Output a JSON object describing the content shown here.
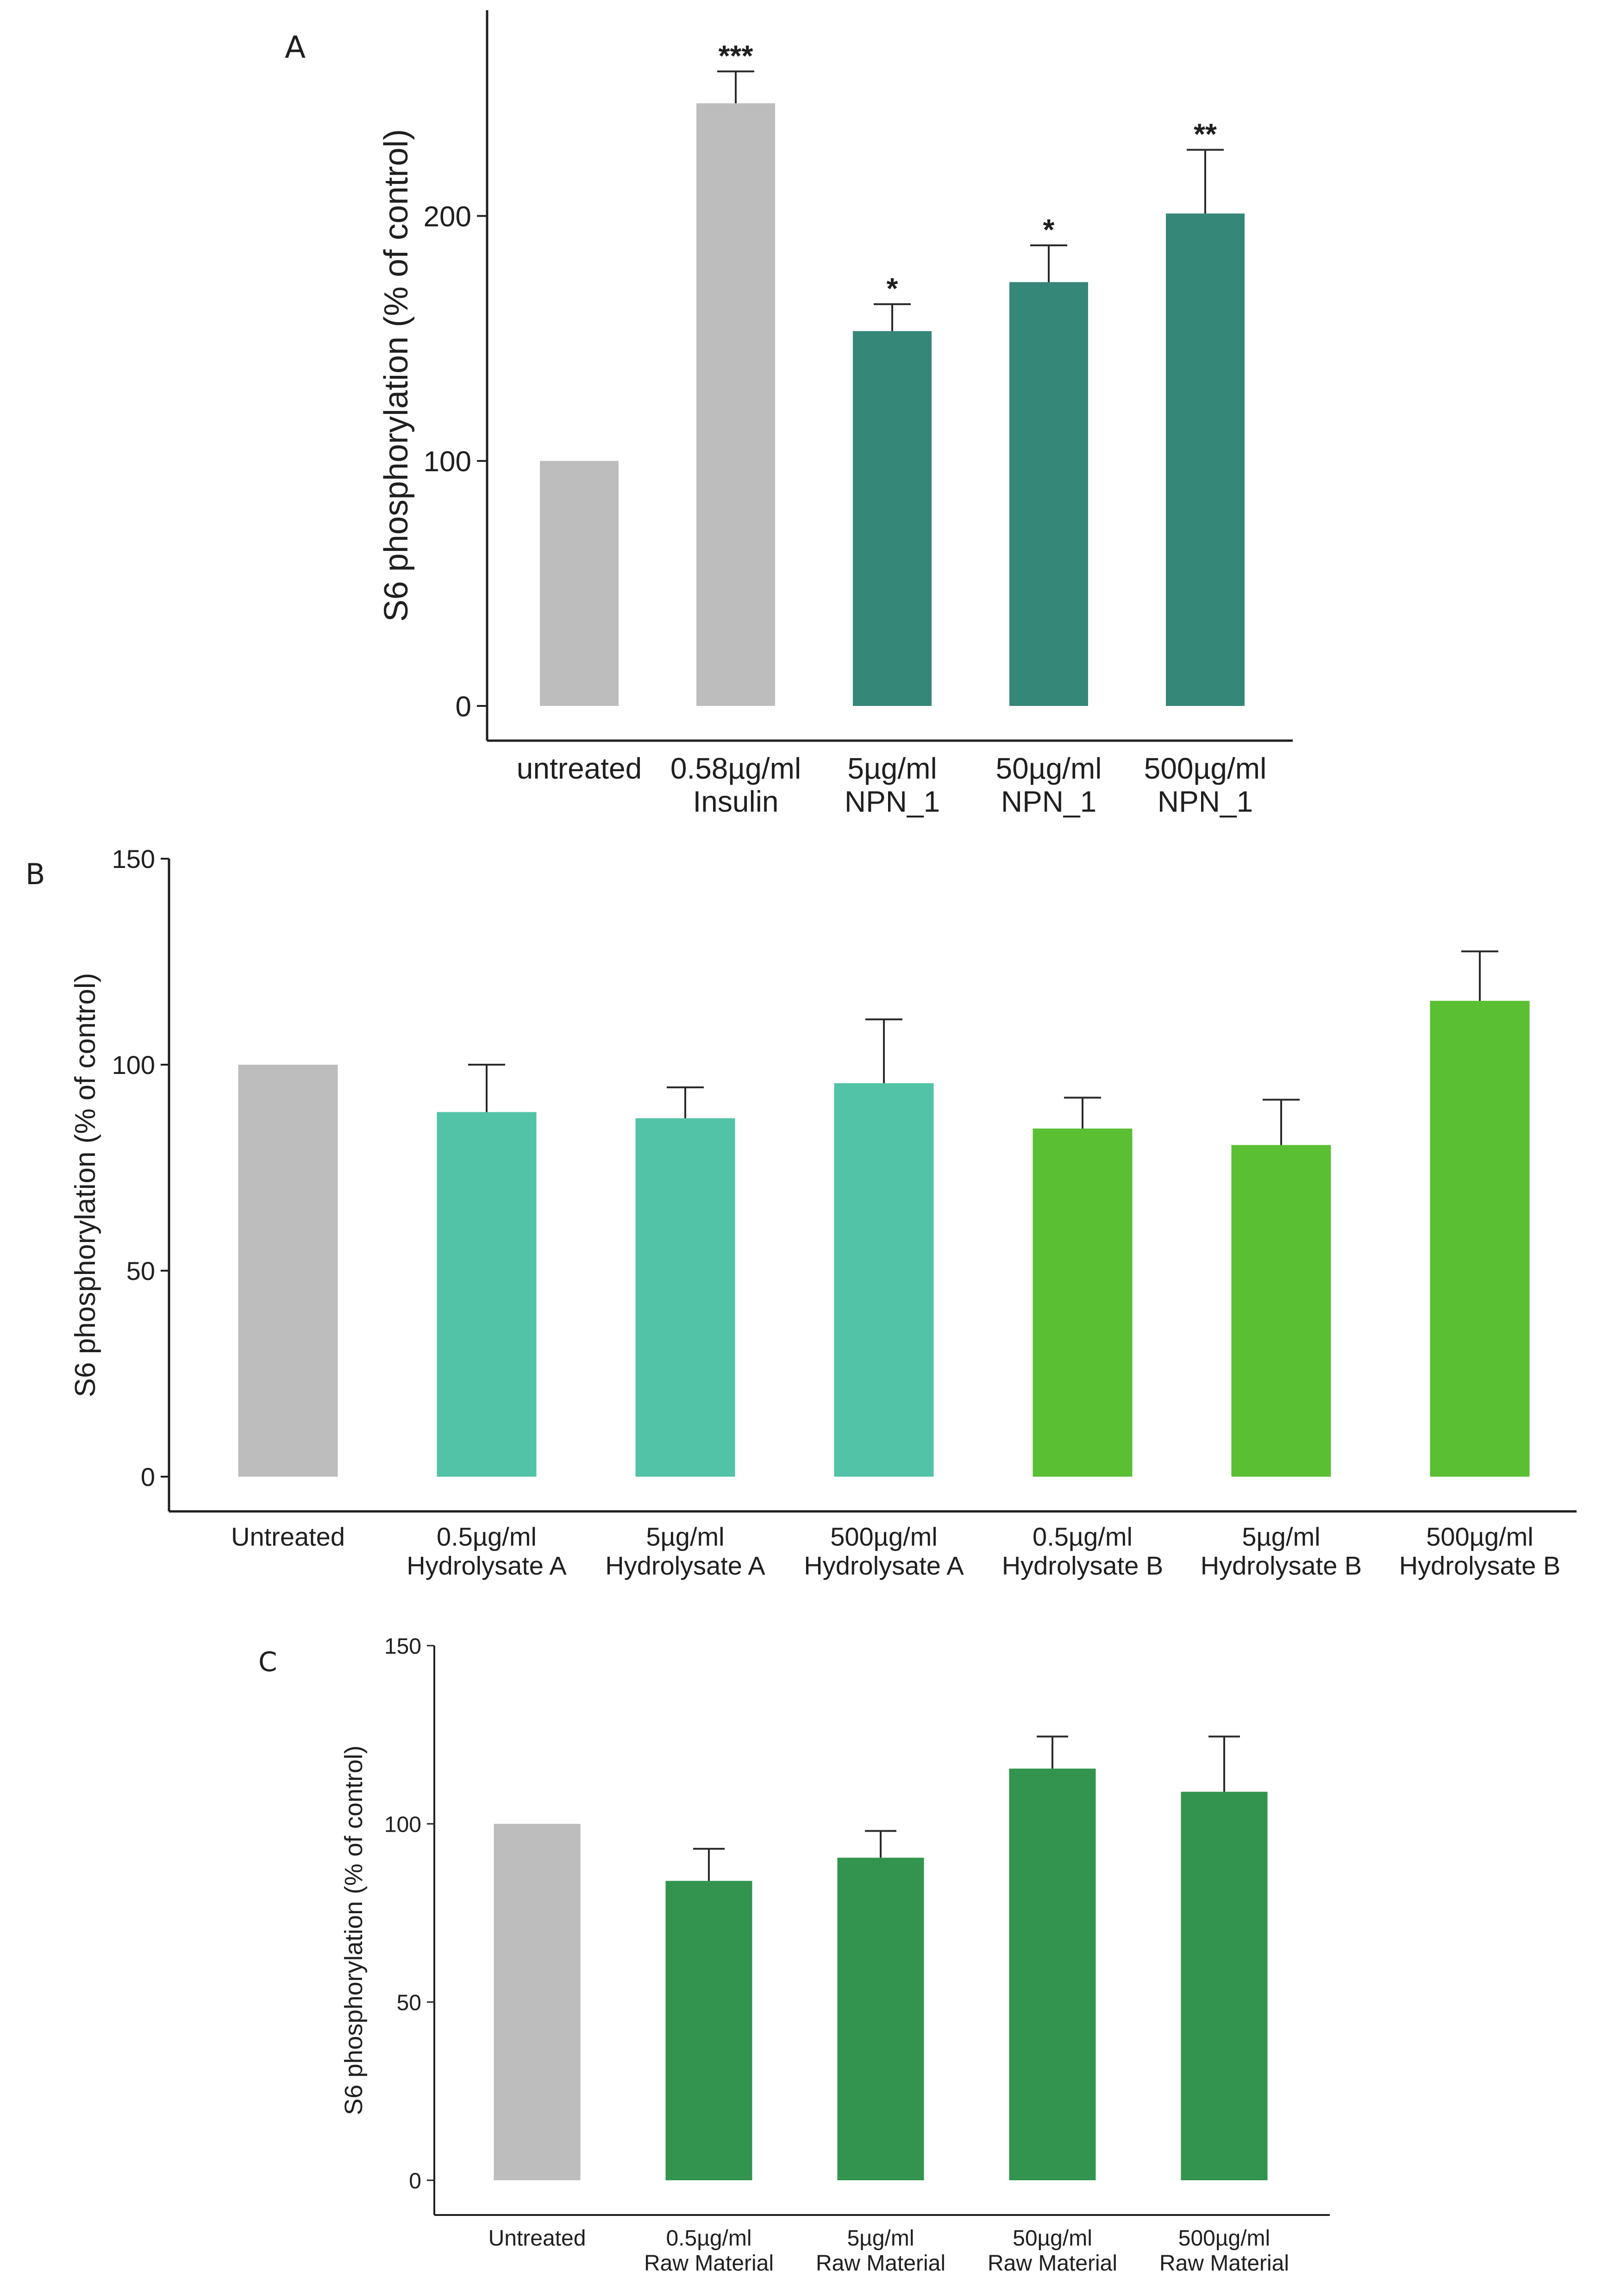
{
  "chart_data": [
    {
      "type": "bar",
      "panel": "A",
      "ylabel": "S6 phosphorylation (% of control)",
      "xlabel": "",
      "ylim": [
        0,
        284
      ],
      "yticks": [
        0,
        100,
        200
      ],
      "categories": [
        "untreated",
        "0.58µg/ml\nInsulin",
        "5µg/ml\nNPN_1",
        "50µg/ml\nNPN_1",
        "500µg/ml\nNPN_1"
      ],
      "values": [
        100,
        246,
        153,
        173,
        201
      ],
      "errors": [
        0,
        13,
        11,
        15,
        26
      ],
      "significance": [
        "",
        "***",
        "*",
        "*",
        "**"
      ],
      "colors": [
        "#bdbdbd",
        "#bdbdbd",
        "#358778",
        "#358778",
        "#358778"
      ],
      "grid": false,
      "legend": "none"
    },
    {
      "type": "bar",
      "panel": "B",
      "ylabel": "S6 phosphorylation (% of control)",
      "xlabel": "",
      "ylim": [
        0,
        150
      ],
      "yticks": [
        0,
        50,
        100,
        150
      ],
      "categories": [
        "Untreated",
        "0.5µg/ml\nHydrolysate A",
        "5µg/ml\nHydrolysate A",
        "500µg/ml\nHydrolysate A",
        "0.5µg/ml\nHydrolysate B",
        "5µg/ml\nHydrolysate B",
        "500µg/ml\nHydrolysate B"
      ],
      "values": [
        100,
        88.5,
        87,
        95.5,
        84.5,
        80.5,
        115.5
      ],
      "errors": [
        0,
        11.5,
        7.5,
        15.5,
        7.5,
        11,
        12
      ],
      "significance": [
        "",
        "",
        "",
        "",
        "",
        "",
        ""
      ],
      "colors": [
        "#bdbdbd",
        "#52c3a6",
        "#52c3a6",
        "#52c3a6",
        "#5bbf33",
        "#5bbf33",
        "#5bbf33"
      ],
      "grid": false,
      "legend": "none"
    },
    {
      "type": "bar",
      "panel": "C",
      "ylabel": "S6 phosphorylation (% of control)",
      "xlabel": "",
      "ylim": [
        0,
        150
      ],
      "yticks": [
        0,
        50,
        100,
        150
      ],
      "categories": [
        "Untreated",
        "0.5µg/ml\nRaw Material",
        "5µg/ml\nRaw Material",
        "50µg/ml\nRaw Material",
        "500µg/ml\nRaw Material"
      ],
      "values": [
        100,
        84,
        90.5,
        115.5,
        109
      ],
      "errors": [
        0,
        9,
        7.5,
        9,
        15.5
      ],
      "significance": [
        "",
        "",
        "",
        "",
        ""
      ],
      "colors": [
        "#bdbdbd",
        "#32944e",
        "#32944e",
        "#32944e",
        "#32944e"
      ],
      "grid": false,
      "legend": "none"
    }
  ]
}
